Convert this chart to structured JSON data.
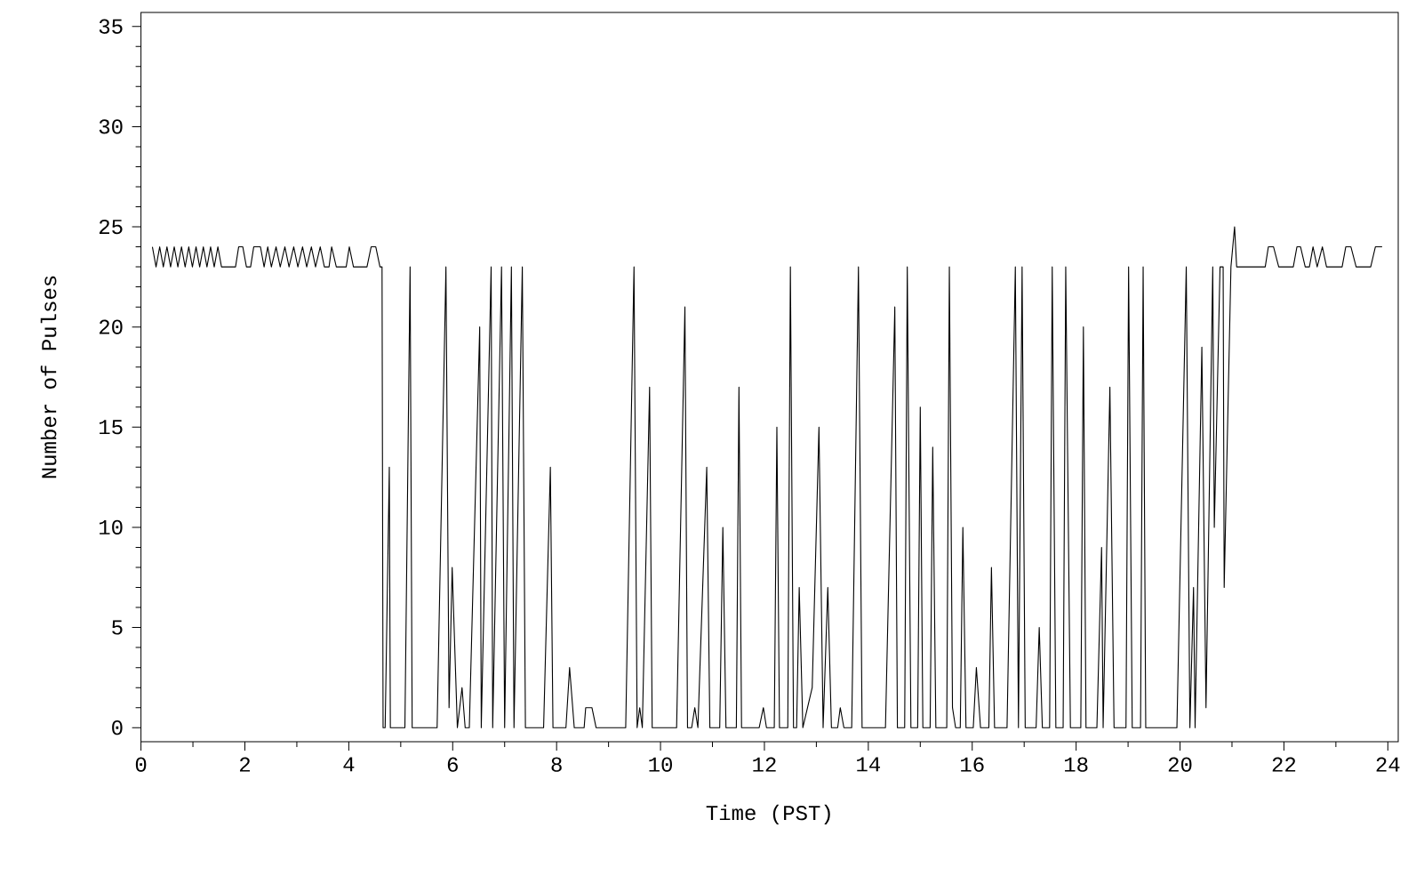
{
  "chart_data": {
    "type": "line",
    "xlabel": "Time (PST)",
    "ylabel": "Number of Pulses",
    "color": "#000000",
    "line_style": "solid",
    "x": [
      0.22,
      0.29,
      0.36,
      0.43,
      0.5,
      0.57,
      0.64,
      0.71,
      0.78,
      0.85,
      0.92,
      0.99,
      1.06,
      1.13,
      1.2,
      1.27,
      1.34,
      1.41,
      1.48,
      1.55,
      1.82,
      1.88,
      1.96,
      2.03,
      2.11,
      2.17,
      2.3,
      2.37,
      2.44,
      2.51,
      2.6,
      2.68,
      2.77,
      2.85,
      2.94,
      3.02,
      3.11,
      3.19,
      3.28,
      3.36,
      3.45,
      3.53,
      3.62,
      3.67,
      3.76,
      3.95,
      4.01,
      4.09,
      4.35,
      4.43,
      4.52,
      4.6,
      4.64,
      4.66,
      4.7,
      4.78,
      4.8,
      5.08,
      5.18,
      5.22,
      5.7,
      5.87,
      5.93,
      5.99,
      6.09,
      6.18,
      6.24,
      6.32,
      6.52,
      6.55,
      6.74,
      6.77,
      6.94,
      7.0,
      7.13,
      7.18,
      7.34,
      7.4,
      7.75,
      7.88,
      7.93,
      8.18,
      8.25,
      8.34,
      8.53,
      8.56,
      8.68,
      8.76,
      9.33,
      9.49,
      9.55,
      9.6,
      9.65,
      9.79,
      9.84,
      10.31,
      10.47,
      10.52,
      10.6,
      10.66,
      10.72,
      10.89,
      10.95,
      11.14,
      11.2,
      11.26,
      11.46,
      11.51,
      11.56,
      11.9,
      11.98,
      12.04,
      12.19,
      12.24,
      12.29,
      12.45,
      12.5,
      12.56,
      12.62,
      12.67,
      12.74,
      12.92,
      13.05,
      13.13,
      13.22,
      13.29,
      13.41,
      13.46,
      13.53,
      13.68,
      13.81,
      13.88,
      14.33,
      14.51,
      14.56,
      14.7,
      14.75,
      14.82,
      14.95,
      15.0,
      15.05,
      15.19,
      15.24,
      15.3,
      15.51,
      15.56,
      15.62,
      15.68,
      15.77,
      15.82,
      15.88,
      16.02,
      16.08,
      16.16,
      16.32,
      16.37,
      16.43,
      16.67,
      16.83,
      16.89,
      16.96,
      17.02,
      17.23,
      17.29,
      17.35,
      17.49,
      17.54,
      17.61,
      17.75,
      17.8,
      17.89,
      18.09,
      18.14,
      18.19,
      18.4,
      18.49,
      18.52,
      18.65,
      18.73,
      18.96,
      19.01,
      19.08,
      19.24,
      19.29,
      19.34,
      19.94,
      20.12,
      20.19,
      20.26,
      20.29,
      20.42,
      20.5,
      20.63,
      20.66,
      20.77,
      20.83,
      20.85,
      20.98,
      21.05,
      21.09,
      21.64,
      21.7,
      21.8,
      21.9,
      22.18,
      22.25,
      22.32,
      22.41,
      22.49,
      22.56,
      22.64,
      22.74,
      22.82,
      23.12,
      23.19,
      23.29,
      23.39,
      23.67,
      23.76,
      23.89
    ],
    "values": [
      24,
      23,
      24,
      23,
      24,
      23,
      24,
      23,
      24,
      23,
      24,
      23,
      24,
      23,
      24,
      23,
      24,
      23,
      24,
      23,
      23,
      24,
      24,
      23,
      23,
      24,
      24,
      23,
      24,
      23,
      24,
      23,
      24,
      23,
      24,
      23,
      24,
      23,
      24,
      23,
      24,
      23,
      23,
      24,
      23,
      23,
      24,
      23,
      23,
      24,
      24,
      23,
      23,
      0,
      0,
      13,
      0,
      0,
      23,
      0,
      0,
      23,
      1,
      8,
      0,
      2,
      0,
      0,
      20,
      0,
      23,
      0,
      23,
      0,
      23,
      0,
      23,
      0,
      0,
      13,
      0,
      0,
      3,
      0,
      0,
      1,
      1,
      0,
      0,
      23,
      0,
      1,
      0,
      17,
      0,
      0,
      21,
      0,
      0,
      1,
      0,
      13,
      0,
      0,
      10,
      0,
      0,
      17,
      0,
      0,
      1,
      0,
      0,
      15,
      0,
      0,
      23,
      0,
      0,
      7,
      0,
      2,
      15,
      0,
      7,
      0,
      0,
      1,
      0,
      0,
      23,
      0,
      0,
      21,
      0,
      0,
      23,
      0,
      0,
      16,
      0,
      0,
      14,
      0,
      0,
      23,
      1,
      0,
      0,
      10,
      0,
      0,
      3,
      0,
      0,
      8,
      0,
      0,
      23,
      0,
      23,
      0,
      0,
      5,
      0,
      0,
      23,
      0,
      0,
      23,
      0,
      0,
      20,
      0,
      0,
      9,
      0,
      17,
      0,
      0,
      23,
      0,
      0,
      23,
      0,
      0,
      23,
      0,
      7,
      0,
      19,
      1,
      23,
      10,
      23,
      23,
      7,
      23,
      25,
      23,
      23,
      24,
      24,
      23,
      23,
      24,
      24,
      23,
      23,
      24,
      23,
      24,
      23,
      23,
      24,
      24,
      23,
      23,
      24,
      24
    ],
    "xlim": [
      0,
      24.2
    ],
    "ylim": [
      -0.7,
      35.7
    ],
    "xticks": [
      0,
      2,
      4,
      6,
      8,
      10,
      12,
      14,
      16,
      18,
      20,
      22,
      24
    ],
    "yticks": [
      0,
      5,
      10,
      15,
      20,
      25,
      30,
      35
    ]
  }
}
